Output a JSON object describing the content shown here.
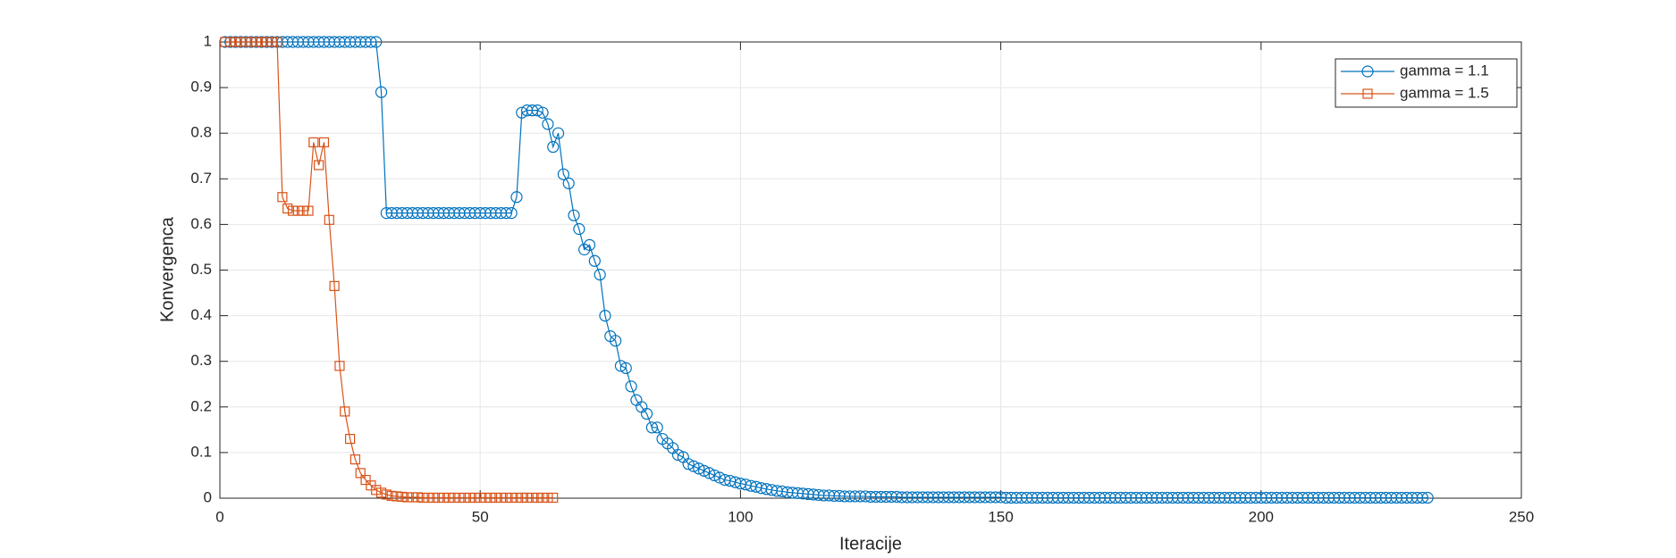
{
  "chart_data": {
    "type": "line",
    "xlabel": "Iteracije",
    "ylabel": "Konvergenca",
    "xlim": [
      0,
      250
    ],
    "xticks": [
      0,
      50,
      100,
      150,
      200,
      250
    ],
    "ylim": [
      0,
      1
    ],
    "yticks": [
      0,
      0.1,
      0.2,
      0.3,
      0.4,
      0.5,
      0.6,
      0.7,
      0.8,
      0.9,
      1
    ],
    "grid": true,
    "legend": "top-right",
    "series": [
      {
        "name": "gamma = 1.1",
        "color": "#0072BD",
        "marker": "circle",
        "x": [
          1,
          2,
          3,
          4,
          5,
          6,
          7,
          8,
          9,
          10,
          11,
          12,
          13,
          14,
          15,
          16,
          17,
          18,
          19,
          20,
          21,
          22,
          23,
          24,
          25,
          26,
          27,
          28,
          29,
          30,
          31,
          32,
          33,
          34,
          35,
          36,
          37,
          38,
          39,
          40,
          41,
          42,
          43,
          44,
          45,
          46,
          47,
          48,
          49,
          50,
          51,
          52,
          53,
          54,
          55,
          56,
          57,
          58,
          59,
          60,
          61,
          62,
          63,
          64,
          65,
          66,
          67,
          68,
          69,
          70,
          71,
          72,
          73,
          74,
          75,
          76,
          77,
          78,
          79,
          80,
          81,
          82,
          83,
          84,
          85,
          86,
          87,
          88,
          89,
          90,
          91,
          92,
          93,
          94,
          95,
          96,
          97,
          98,
          99,
          100,
          101,
          102,
          103,
          104,
          105,
          106,
          107,
          108,
          109,
          110,
          111,
          112,
          113,
          114,
          115,
          116,
          117,
          118,
          119,
          120,
          121,
          122,
          123,
          124,
          125,
          126,
          127,
          128,
          129,
          130,
          131,
          132,
          133,
          134,
          135,
          136,
          137,
          138,
          139,
          140,
          141,
          142,
          143,
          144,
          145,
          146,
          147,
          148,
          149,
          150,
          151,
          152,
          153,
          154,
          155,
          156,
          157,
          158,
          159,
          160,
          161,
          162,
          163,
          164,
          165,
          166,
          167,
          168,
          169,
          170,
          171,
          172,
          173,
          174,
          175,
          176,
          177,
          178,
          179,
          180,
          181,
          182,
          183,
          184,
          185,
          186,
          187,
          188,
          189,
          190,
          191,
          192,
          193,
          194,
          195,
          196,
          197,
          198,
          199,
          200,
          201,
          202,
          203,
          204,
          205,
          206,
          207,
          208,
          209,
          210,
          211,
          212,
          213,
          214,
          215,
          216,
          217,
          218,
          219,
          220,
          221,
          222,
          223,
          224,
          225,
          226,
          227,
          228,
          229,
          230,
          231,
          232
        ],
        "values": [
          1,
          1,
          1,
          1,
          1,
          1,
          1,
          1,
          1,
          1,
          1,
          1,
          1,
          1,
          1,
          1,
          1,
          1,
          1,
          1,
          1,
          1,
          1,
          1,
          1,
          1,
          1,
          1,
          1,
          1,
          0.89,
          0.625,
          0.625,
          0.625,
          0.625,
          0.625,
          0.625,
          0.625,
          0.625,
          0.625,
          0.625,
          0.625,
          0.625,
          0.625,
          0.625,
          0.625,
          0.625,
          0.625,
          0.625,
          0.625,
          0.625,
          0.625,
          0.625,
          0.625,
          0.625,
          0.625,
          0.66,
          0.845,
          0.85,
          0.85,
          0.85,
          0.845,
          0.82,
          0.77,
          0.8,
          0.71,
          0.69,
          0.62,
          0.59,
          0.545,
          0.555,
          0.52,
          0.49,
          0.4,
          0.355,
          0.345,
          0.29,
          0.285,
          0.245,
          0.215,
          0.2,
          0.185,
          0.155,
          0.155,
          0.13,
          0.12,
          0.11,
          0.095,
          0.09,
          0.075,
          0.07,
          0.065,
          0.06,
          0.055,
          0.05,
          0.045,
          0.04,
          0.038,
          0.035,
          0.032,
          0.03,
          0.027,
          0.025,
          0.022,
          0.02,
          0.018,
          0.016,
          0.015,
          0.013,
          0.012,
          0.011,
          0.01,
          0.009,
          0.008,
          0.007,
          0.006,
          0.006,
          0.005,
          0.005,
          0.004,
          0.004,
          0.004,
          0.004,
          0.004,
          0.003,
          0.003,
          0.003,
          0.003,
          0.003,
          0.003,
          0.002,
          0.002,
          0.002,
          0.002,
          0.002,
          0.002,
          0.002,
          0.002,
          0.002,
          0.002,
          0.002,
          0.002,
          0.002,
          0.002,
          0.002,
          0.002,
          0.002,
          0.002,
          0.002,
          0.002,
          0.001,
          0.001,
          0.001,
          0.001,
          0.001,
          0.001,
          0.001,
          0.001,
          0.001,
          0.001,
          0.001,
          0.001,
          0.001,
          0.001,
          0.001,
          0.001,
          0.001,
          0.001,
          0.001,
          0.001,
          0.001,
          0.001,
          0.001,
          0.001,
          0.001,
          0.001,
          0.001,
          0.001,
          0.001,
          0.001,
          0.001,
          0.001,
          0.001,
          0.001,
          0.001,
          0.001,
          0.001,
          0.001,
          0.001,
          0.001,
          0.001,
          0.001,
          0.001,
          0.001,
          0.001,
          0.001,
          0.001,
          0.001,
          0.001,
          0.001,
          0.001,
          0.001,
          0.001,
          0.001,
          0.001,
          0.001,
          0.001,
          0.001,
          0.001,
          0.001,
          0.001,
          0.001,
          0.001,
          0.001,
          0.001,
          0.001,
          0.001,
          0.001,
          0.001,
          0.001,
          0.001,
          0.001,
          0.001,
          0.001,
          0.001,
          0.001,
          0.001,
          0.001,
          0.001,
          0.001,
          0.001,
          0.001
        ]
      },
      {
        "name": "gamma = 1.5",
        "color": "#D95319",
        "marker": "square",
        "x": [
          1,
          2,
          3,
          4,
          5,
          6,
          7,
          8,
          9,
          10,
          11,
          12,
          13,
          14,
          15,
          16,
          17,
          18,
          19,
          20,
          21,
          22,
          23,
          24,
          25,
          26,
          27,
          28,
          29,
          30,
          31,
          32,
          33,
          34,
          35,
          36,
          37,
          38,
          39,
          40,
          41,
          42,
          43,
          44,
          45,
          46,
          47,
          48,
          49,
          50,
          51,
          52,
          53,
          54,
          55,
          56,
          57,
          58,
          59,
          60,
          61,
          62,
          63,
          64
        ],
        "values": [
          1,
          1,
          1,
          1,
          1,
          1,
          1,
          1,
          1,
          1,
          1,
          0.66,
          0.635,
          0.63,
          0.63,
          0.63,
          0.63,
          0.78,
          0.73,
          0.78,
          0.61,
          0.465,
          0.29,
          0.19,
          0.13,
          0.085,
          0.055,
          0.04,
          0.028,
          0.018,
          0.012,
          0.008,
          0.005,
          0.004,
          0.003,
          0.002,
          0.002,
          0.002,
          0.001,
          0.001,
          0.001,
          0.001,
          0.001,
          0.001,
          0.001,
          0.001,
          0.001,
          0.001,
          0.001,
          0.001,
          0.001,
          0.001,
          0.001,
          0.001,
          0.001,
          0.001,
          0.001,
          0.001,
          0.001,
          0.001,
          0.001,
          0.001,
          0.001,
          0.001
        ]
      }
    ]
  }
}
